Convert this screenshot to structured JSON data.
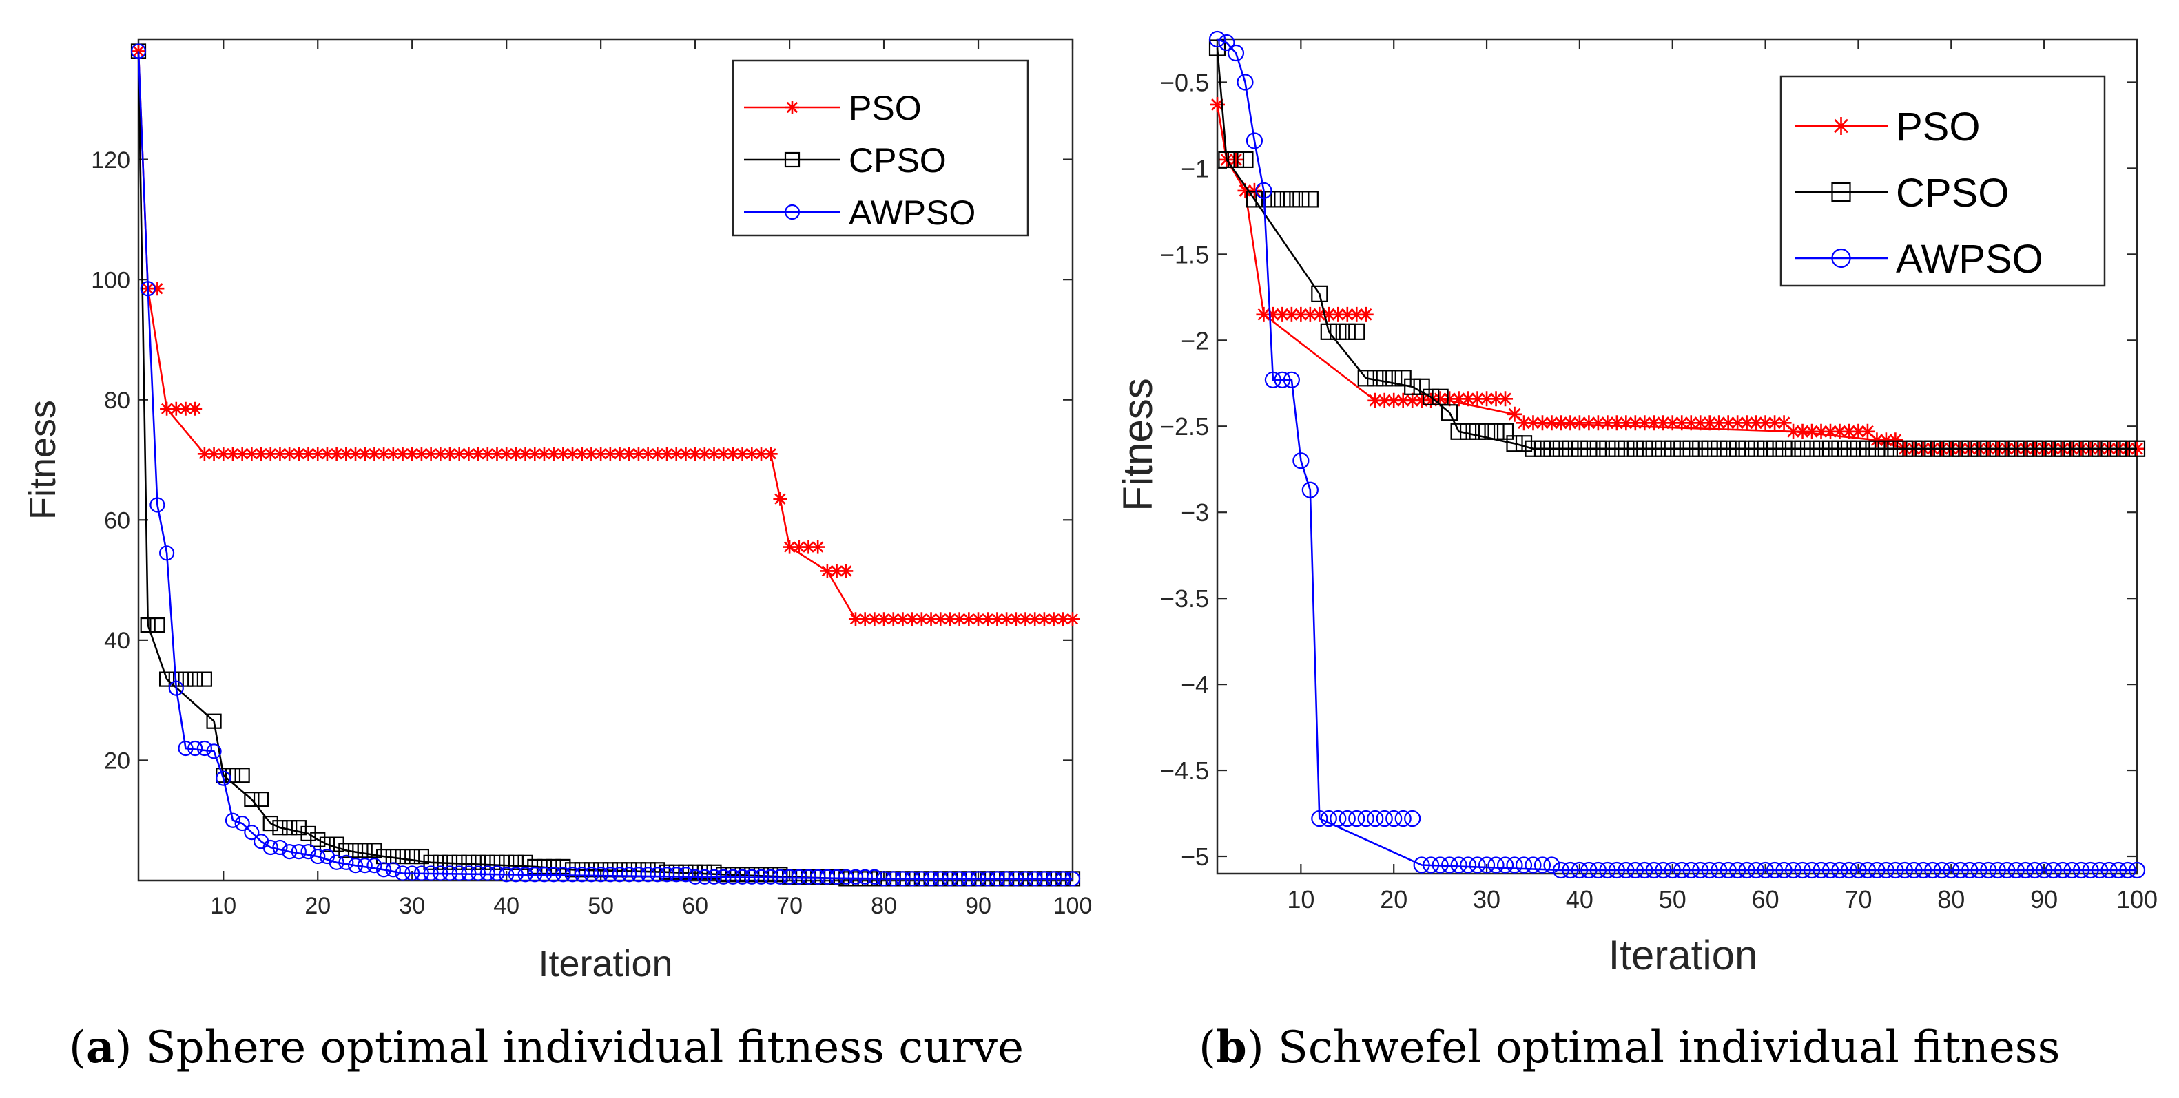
{
  "chart_data": [
    {
      "type": "line",
      "xlabel": "Iteration",
      "ylabel": "Fitness",
      "xlim": [
        0,
        100
      ],
      "ylim": [
        0,
        140
      ],
      "xticks": [
        10,
        20,
        30,
        40,
        50,
        60,
        70,
        80,
        90,
        100
      ],
      "yticks": [
        20,
        40,
        60,
        80,
        100,
        120
      ],
      "legend": "top-right",
      "caption_letter": "a",
      "caption_text": "Sphere optimal individual fitness curve",
      "series": [
        {
          "name": "PSO",
          "color": "#ff0000",
          "marker": "asterisk",
          "steps": [
            [
              1,
              138
            ],
            [
              2,
              98.5
            ],
            [
              4,
              78.5
            ],
            [
              8,
              71
            ],
            [
              68,
              71
            ],
            [
              69,
              63.5
            ],
            [
              70,
              55.5
            ],
            [
              74,
              51.5
            ],
            [
              77,
              43.5
            ],
            [
              100,
              43.5
            ]
          ]
        },
        {
          "name": "CPSO",
          "color": "#000000",
          "marker": "square",
          "steps": [
            [
              1,
              138
            ],
            [
              2,
              42.5
            ],
            [
              4,
              33.5
            ],
            [
              9,
              26.5
            ],
            [
              10,
              17.5
            ],
            [
              13,
              13.5
            ],
            [
              15,
              9.5
            ],
            [
              16,
              8.8
            ],
            [
              19,
              7.8
            ],
            [
              20,
              6.8
            ],
            [
              21,
              6
            ],
            [
              23,
              5
            ],
            [
              27,
              4
            ],
            [
              32,
              3
            ],
            [
              43,
              2.3
            ],
            [
              47,
              1.8
            ],
            [
              57,
              1.4
            ],
            [
              63,
              1
            ],
            [
              70,
              0.6
            ],
            [
              76,
              0.3
            ],
            [
              100,
              0.3
            ]
          ]
        },
        {
          "name": "AWPSO",
          "color": "#0000ff",
          "marker": "circle",
          "steps": [
            [
              1,
              138
            ],
            [
              2,
              98.5
            ],
            [
              3,
              62.5
            ],
            [
              4,
              54.5
            ],
            [
              5,
              32
            ],
            [
              6,
              22
            ],
            [
              9,
              21.5
            ],
            [
              10,
              17
            ],
            [
              11,
              10
            ],
            [
              12,
              9.5
            ],
            [
              13,
              8
            ],
            [
              14,
              6.5
            ],
            [
              15,
              5.5
            ],
            [
              17,
              4.8
            ],
            [
              20,
              4
            ],
            [
              22,
              3
            ],
            [
              24,
              2.5
            ],
            [
              27,
              1.8
            ],
            [
              29,
              1.2
            ],
            [
              40,
              1
            ],
            [
              60,
              0.6
            ],
            [
              80,
              0.3
            ],
            [
              100,
              0.3
            ]
          ]
        }
      ]
    },
    {
      "type": "line",
      "xlabel": "Iteration",
      "ylabel": "Fitness",
      "xlim": [
        0,
        100
      ],
      "ylim": [
        -5.1,
        -0.25
      ],
      "xticks": [
        10,
        20,
        30,
        40,
        50,
        60,
        70,
        80,
        90,
        100
      ],
      "yticks": [
        -0.5,
        -1,
        -1.5,
        -2,
        -2.5,
        -3,
        -3.5,
        -4,
        -4.5,
        -5
      ],
      "legend": "top-right",
      "caption_letter": "b",
      "caption_text": "Schwefel optimal individual fitness",
      "series": [
        {
          "name": "PSO",
          "color": "#ff0000",
          "marker": "asterisk",
          "steps": [
            [
              1,
              -0.63
            ],
            [
              2,
              -0.95
            ],
            [
              4,
              -1.13
            ],
            [
              6,
              -1.85
            ],
            [
              18,
              -2.35
            ],
            [
              25,
              -2.34
            ],
            [
              33,
              -2.43
            ],
            [
              34,
              -2.48
            ],
            [
              63,
              -2.53
            ],
            [
              72,
              -2.58
            ],
            [
              75,
              -2.63
            ],
            [
              100,
              -2.63
            ]
          ]
        },
        {
          "name": "CPSO",
          "color": "#000000",
          "marker": "square",
          "steps": [
            [
              1,
              -0.3
            ],
            [
              2,
              -0.95
            ],
            [
              5,
              -1.18
            ],
            [
              12,
              -1.73
            ],
            [
              13,
              -1.95
            ],
            [
              17,
              -2.22
            ],
            [
              22,
              -2.27
            ],
            [
              24,
              -2.33
            ],
            [
              26,
              -2.42
            ],
            [
              27,
              -2.53
            ],
            [
              33,
              -2.6
            ],
            [
              35,
              -2.63
            ],
            [
              100,
              -2.63
            ]
          ]
        },
        {
          "name": "AWPSO",
          "color": "#0000ff",
          "marker": "circle",
          "steps": [
            [
              1,
              -0.25
            ],
            [
              2,
              -0.27
            ],
            [
              3,
              -0.33
            ],
            [
              4,
              -0.5
            ],
            [
              5,
              -0.84
            ],
            [
              6,
              -1.13
            ],
            [
              7,
              -2.23
            ],
            [
              9,
              -2.23
            ],
            [
              10,
              -2.7
            ],
            [
              11,
              -2.87
            ],
            [
              12,
              -4.78
            ],
            [
              23,
              -5.05
            ],
            [
              38,
              -5.08
            ],
            [
              100,
              -5.08
            ]
          ]
        }
      ]
    }
  ]
}
